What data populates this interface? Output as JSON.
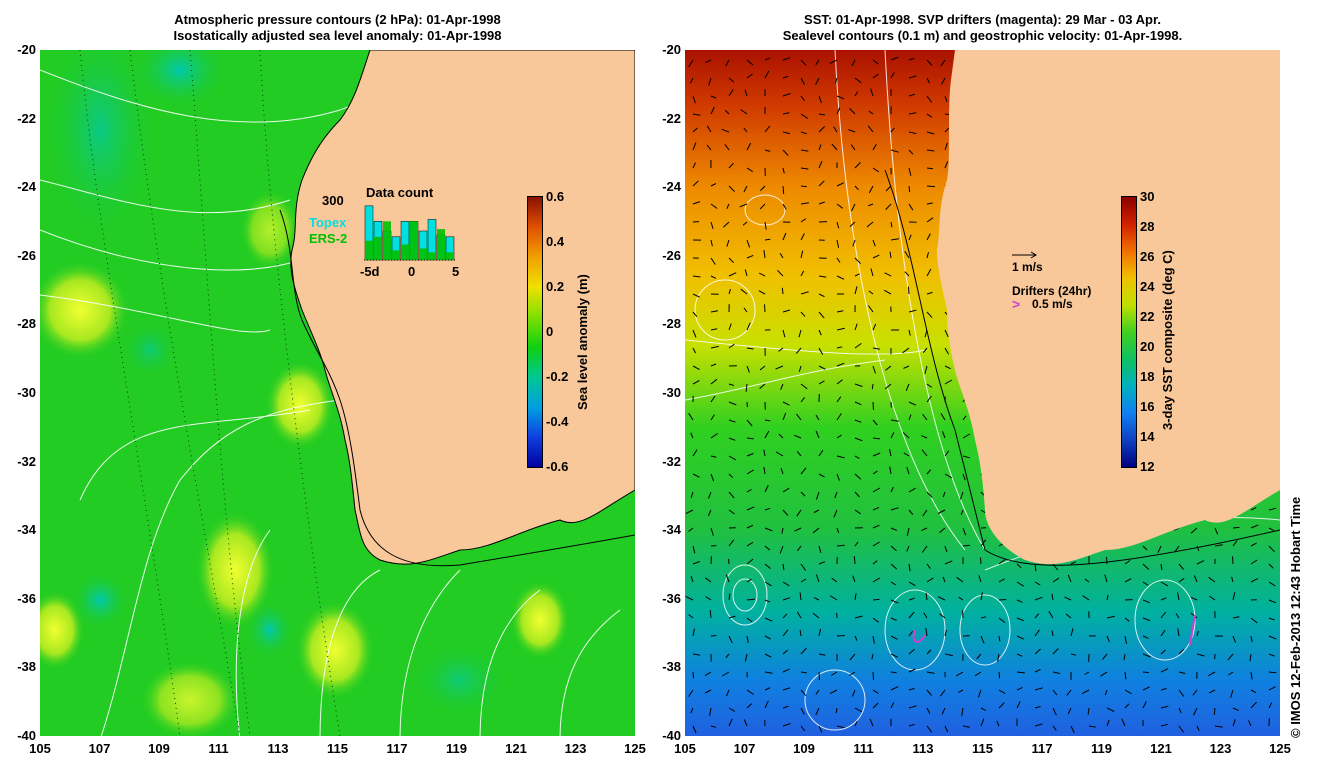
{
  "left_panel": {
    "title_line1": "Atmospheric pressure contours (2 hPa): 01-Apr-1998",
    "title_line2": "Isostatically adjusted sea level anomaly: 01-Apr-1998",
    "colorbar_title": "Sea level anomaly (m)",
    "colorbar_ticks": [
      "0.6",
      "0.4",
      "0.2",
      "0",
      "-0.2",
      "-0.4",
      "-0.6"
    ],
    "inset": {
      "title": "Data count",
      "ymax_label": "300",
      "series": [
        "Topex",
        "ERS-2"
      ],
      "series_colors": {
        "Topex": "#00e0e0",
        "ERS-2": "#00c000"
      },
      "x_labels": [
        "-5d",
        "0",
        "5"
      ],
      "topex_counts": [
        280,
        200,
        150,
        120,
        200,
        200,
        150,
        210,
        130,
        120
      ],
      "ers2_counts": [
        100,
        120,
        200,
        50,
        80,
        200,
        60,
        40,
        160,
        40
      ]
    }
  },
  "right_panel": {
    "title_line1": "SST: 01-Apr-1998. SVP drifters (magenta): 29 Mar - 03 Apr.",
    "title_line2": "Sealevel contours (0.1 m) and geostrophic velocity: 01-Apr-1998.",
    "colorbar_title": "3-day SST composite (deg C)",
    "colorbar_ticks": [
      "30",
      "28",
      "26",
      "24",
      "22",
      "20",
      "18",
      "16",
      "14",
      "12"
    ],
    "velocity_label": "1 m/s",
    "drifters_label": "Drifters (24hr)",
    "drifter_speed_label": "0.5 m/s",
    "drifter_color": "#d040d0"
  },
  "axes": {
    "y_ticks": [
      "-20",
      "-22",
      "-24",
      "-26",
      "-28",
      "-30",
      "-32",
      "-34",
      "-36",
      "-38",
      "-40"
    ],
    "x_ticks": [
      "105",
      "107",
      "109",
      "111",
      "113",
      "115",
      "117",
      "119",
      "121",
      "123",
      "125"
    ]
  },
  "colors": {
    "land": "#f9c89a",
    "sla_base": "#22cc22",
    "sst_warm": "#aa1100",
    "sst_cold": "#1060e0"
  },
  "credit": "© IMOS 12-Feb-2013 12:43 Hobart Time"
}
